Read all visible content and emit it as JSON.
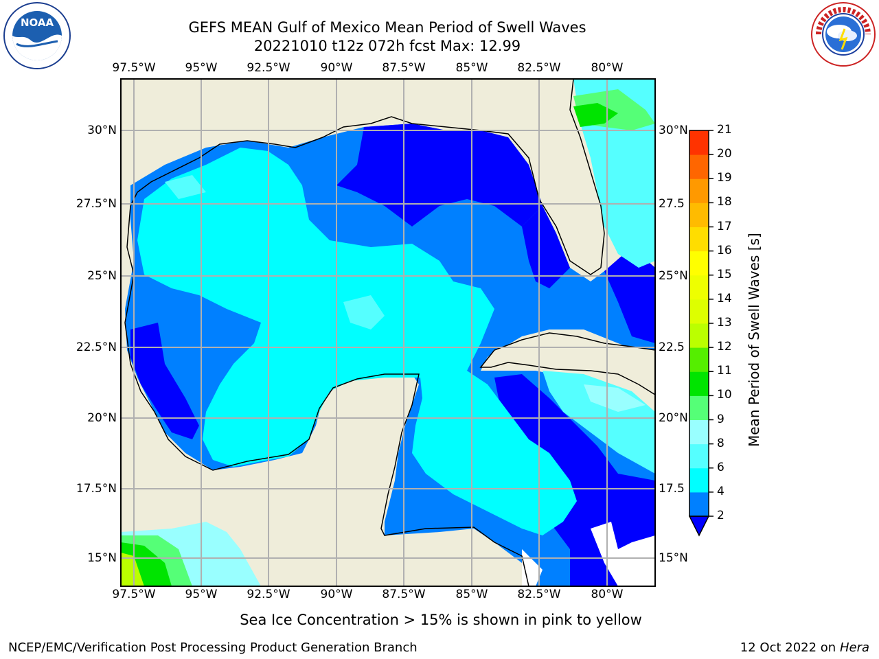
{
  "header": {
    "title_line1": "GEFS MEAN Gulf of Mexico Mean Period of Swell Waves",
    "title_line2": "20221010 t12z 072h fcst   Max: 12.99"
  },
  "logos": {
    "noaa_text": "NOAA",
    "noaa_ring_text": "NATIONAL OCEANIC AND ATMOSPHERIC ADMINISTRATION · U.S. DEPARTMENT OF COMMERCE",
    "nws_ring_text": "NATIONAL WEATHER SERVICE"
  },
  "map": {
    "lon_labels": [
      "97.5°W",
      "95°W",
      "92.5°W",
      "90°W",
      "87.5°W",
      "85°W",
      "82.5°W",
      "80°W"
    ],
    "lat_labels_left": [
      "30°N",
      "27.5°N",
      "25°N",
      "22.5°N",
      "20°N",
      "17.5°N",
      "15°N"
    ],
    "lat_labels_right": [
      "30°N",
      "27.5",
      "25°N",
      "22.5",
      "20°N",
      "17.5",
      "15°N"
    ],
    "colors": {
      "land": "#efedda",
      "ocean_deep_blue": "#0000ff",
      "blue": "#0080ff",
      "cyan": "#00ffff",
      "light_cyan": "#55ffff",
      "pale_cyan": "#99ffff",
      "light_green": "#55ff77",
      "green": "#00e400",
      "grid": "#b0b0b0"
    }
  },
  "colorbar": {
    "label": "Mean Period of Swell Waves [s]",
    "ticks": [
      "2",
      "4",
      "6",
      "8",
      "9",
      "10",
      "11",
      "12",
      "13",
      "14",
      "15",
      "16",
      "17",
      "18",
      "19",
      "20",
      "21"
    ],
    "colors": [
      "#0080ff",
      "#00ffff",
      "#55ffff",
      "#99ffff",
      "#55ff77",
      "#00e400",
      "#55ee00",
      "#bbff00",
      "#ddff00",
      "#eeff00",
      "#ffff00",
      "#ffdd00",
      "#ffbb00",
      "#ff9900",
      "#ff6600",
      "#ff3300"
    ],
    "under_color": "#0000ff"
  },
  "notes": {
    "sea_ice": "Sea Ice Concentration > 15% is shown in pink to yellow"
  },
  "footer": {
    "left": "NCEP/EMC/Verification Post Processing Product Generation Branch",
    "date": "12 Oct 2022 on ",
    "machine": "Hera"
  }
}
